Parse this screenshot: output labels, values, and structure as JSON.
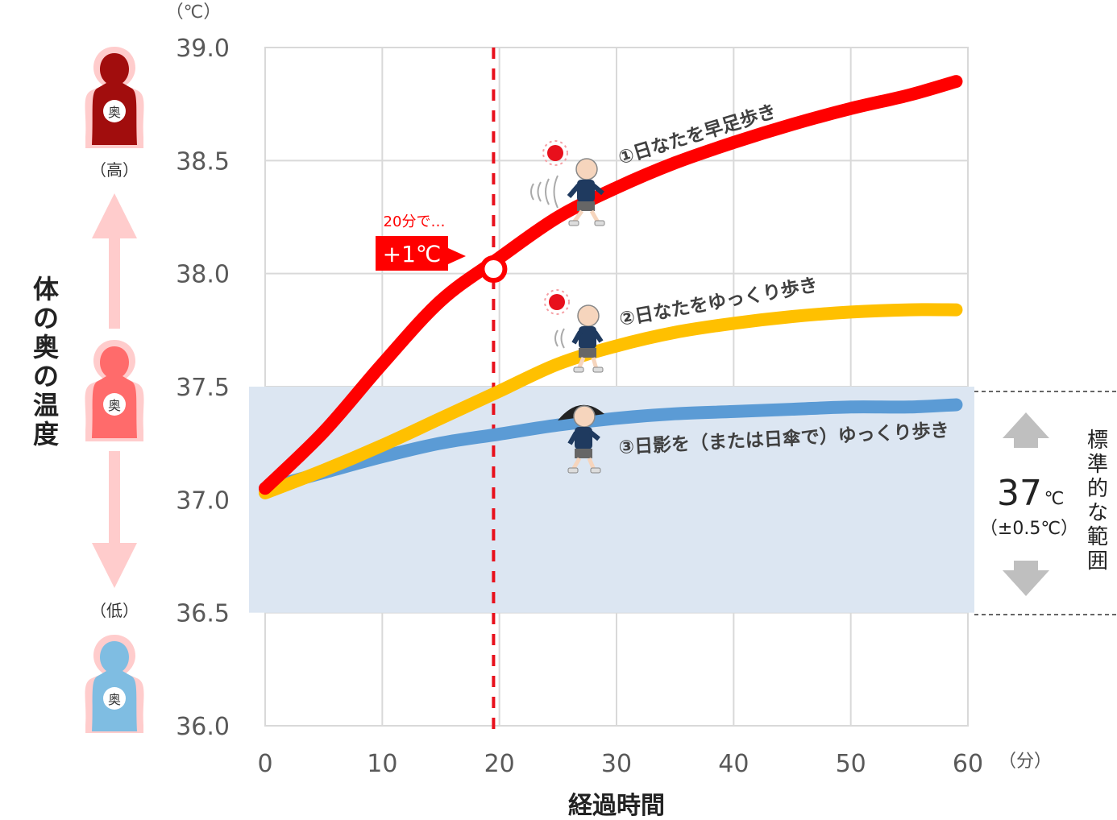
{
  "chart_data": {
    "type": "line",
    "y_unit": "（℃）",
    "x_unit": "（分）",
    "xlabel": "経過時間",
    "ylabel": "体の奥の温度",
    "xlim": [
      0,
      60
    ],
    "ylim": [
      36.0,
      39.0
    ],
    "x_ticks": [
      "0",
      "10",
      "20",
      "30",
      "40",
      "50",
      "60"
    ],
    "y_ticks": [
      "36.0",
      "36.5",
      "37.0",
      "37.5",
      "38.0",
      "38.5",
      "39.0"
    ],
    "grid": true,
    "series": [
      {
        "name": "①日なたを早足歩き",
        "color": "#ff0000",
        "x": [
          0,
          5,
          10,
          15,
          20,
          25,
          30,
          35,
          40,
          45,
          50,
          55,
          59
        ],
        "y": [
          37.05,
          37.3,
          37.6,
          37.88,
          38.07,
          38.25,
          38.38,
          38.49,
          38.58,
          38.66,
          38.73,
          38.79,
          38.85
        ]
      },
      {
        "name": "②日なたをゆっくり歩き",
        "color": "#ffc000",
        "x": [
          0,
          5,
          10,
          15,
          20,
          25,
          30,
          35,
          40,
          45,
          50,
          55,
          59
        ],
        "y": [
          37.03,
          37.13,
          37.24,
          37.36,
          37.48,
          37.6,
          37.68,
          37.74,
          37.78,
          37.81,
          37.83,
          37.84,
          37.84
        ]
      },
      {
        "name": "③日影を（または日傘で）ゆっくり歩き",
        "color": "#5b9bd5",
        "x": [
          0,
          5,
          10,
          15,
          20,
          25,
          30,
          35,
          40,
          45,
          50,
          55,
          59
        ],
        "y": [
          37.05,
          37.12,
          37.19,
          37.25,
          37.29,
          37.33,
          37.36,
          37.38,
          37.39,
          37.4,
          37.41,
          37.41,
          37.42
        ]
      }
    ],
    "normal_band": {
      "from": 36.5,
      "to": 37.5,
      "color": "#dce6f2"
    },
    "marker": {
      "x": 19.5,
      "y": 38.02
    },
    "vline_x": 19.5,
    "annotation_small": "20分で…",
    "annotation_big": "+1℃",
    "band_value": "37",
    "band_value_unit": "℃",
    "band_range": "（±0.5℃）",
    "band_label": "標準的な範囲",
    "left_high": "（高）",
    "left_low": "（低）",
    "body_glyph": "奥"
  }
}
